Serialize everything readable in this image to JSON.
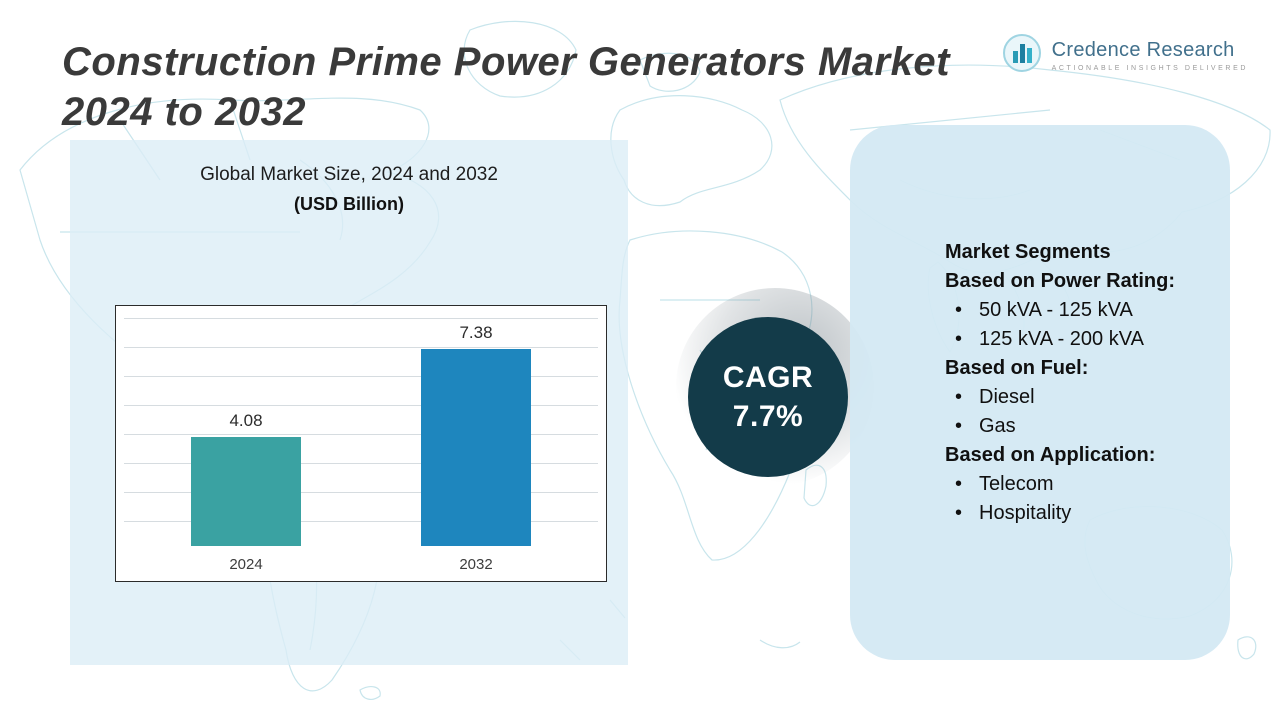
{
  "title": {
    "line1": "Construction Prime Power Generators Market",
    "line2": "2024 to 2032"
  },
  "logo": {
    "name": "Credence Research",
    "tagline": "ACTIONABLE INSIGHTS DELIVERED",
    "icon": "bar-chart-icon"
  },
  "chart_data": {
    "type": "bar",
    "title": "Global Market Size, 2024 and 2032",
    "subtitle": "(USD Billion)",
    "categories": [
      "2024",
      "2032"
    ],
    "values": [
      4.08,
      7.38
    ],
    "ylim": [
      0,
      9
    ],
    "grid": true,
    "legend": "none",
    "bar_colors": [
      "#3aa2a2",
      "#1e86be"
    ]
  },
  "cagr": {
    "label": "CAGR",
    "value": "7.7%"
  },
  "segments": {
    "heading": "Market Segments",
    "groups": [
      {
        "title": "Based on Power Rating:",
        "items": [
          "50 kVA - 125 kVA",
          "125 kVA - 200 kVA"
        ]
      },
      {
        "title": "Based on Fuel:",
        "items": [
          "Diesel",
          "Gas"
        ]
      },
      {
        "title": "Based on Application:",
        "items": [
          "Telecom",
          "Hospitality"
        ]
      }
    ]
  },
  "colors": {
    "accent_dark_teal": "#133b49",
    "bar_2024": "#3aa2a2",
    "bar_2032": "#1e86be",
    "panel_blue": "#d3e9f3",
    "map_line": "#c8e5ec",
    "brand_blue": "#41708c"
  }
}
